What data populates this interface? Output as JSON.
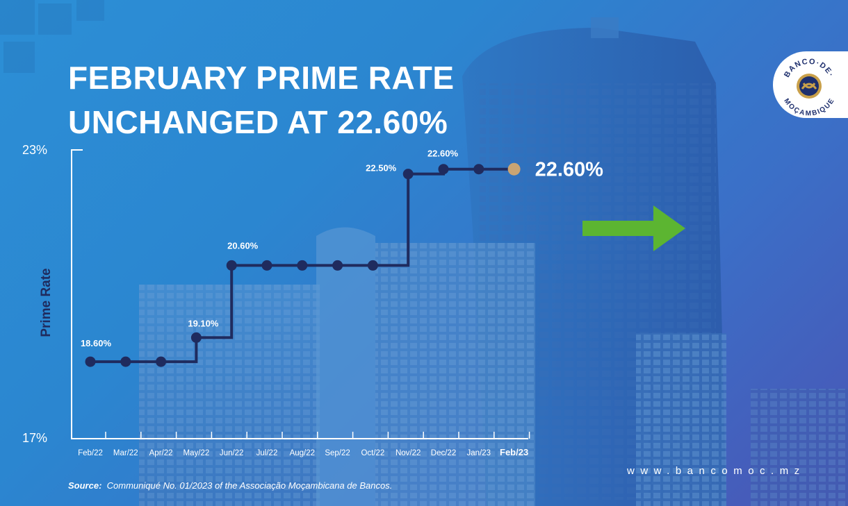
{
  "title": {
    "line1": "FEBRUARY PRIME RATE",
    "line2": "UNCHANGED AT 22.60%"
  },
  "logo": {
    "text_top": "BANCO·DE·",
    "text_bottom": "MOÇAMBIQUE"
  },
  "website": "www.bancomoc.mz",
  "source": {
    "label": "Source:",
    "text": "Communiqué No. 01/2023 of the Associação Moçambicana de Bancos."
  },
  "colors": {
    "line": "#1f2b5e",
    "highlight_point": "#c9a473",
    "arrow": "#5cb531",
    "text": "#ffffff"
  },
  "chart_data": {
    "type": "line",
    "step": true,
    "ylabel": "Prime Rate",
    "xlabel": "",
    "ylim": [
      17,
      23
    ],
    "y_tick_labels": [
      "17%",
      "23%"
    ],
    "categories": [
      "Feb/22",
      "Mar/22",
      "Apr/22",
      "May/22",
      "Jun/22",
      "Jul/22",
      "Aug/22",
      "Sep/22",
      "Oct/22",
      "Nov/22",
      "Dec/22",
      "Jan/23",
      "Feb/23"
    ],
    "series": [
      {
        "values": [
          18.6,
          18.6,
          18.6,
          19.1,
          20.6,
          20.6,
          20.6,
          20.6,
          20.6,
          22.5,
          22.6,
          22.6,
          22.6
        ]
      }
    ],
    "point_labels": [
      {
        "index": 0,
        "text": "18.60%"
      },
      {
        "index": 3,
        "text": "19.10%"
      },
      {
        "index": 4,
        "text": "20.60%"
      },
      {
        "index": 9,
        "text": "22.50%"
      },
      {
        "index": 10,
        "text": "22.60%"
      }
    ],
    "highlight": {
      "index": 12,
      "text": "22.60%"
    },
    "bold_category_index": 12,
    "grid": false,
    "legend": "none"
  }
}
